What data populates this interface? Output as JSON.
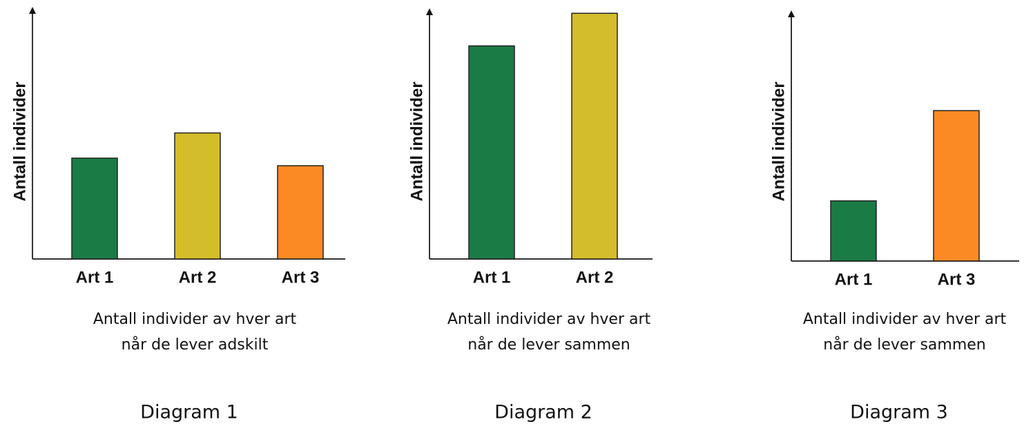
{
  "chart_data": [
    {
      "type": "bar",
      "title": "Diagram 1",
      "y_label": "Antall individer",
      "categories": [
        "Art 1",
        "Art 2",
        "Art 3"
      ],
      "values": [
        40,
        50,
        37
      ],
      "colors": [
        "#1b7b45",
        "#d4bd2b",
        "#fb8a24"
      ],
      "ylim": [
        0,
        100
      ],
      "caption": [
        "Antall individer av hver art",
        "når de lever adskilt"
      ]
    },
    {
      "type": "bar",
      "title": "Diagram 2",
      "y_label": "Antall individer",
      "categories": [
        "Art 1",
        "Art 2"
      ],
      "values": [
        85,
        98
      ],
      "colors": [
        "#1b7b45",
        "#d4bd2b"
      ],
      "ylim": [
        0,
        100
      ],
      "caption": [
        "Antall individer av hver art",
        "når de lever sammen"
      ]
    },
    {
      "type": "bar",
      "title": "Diagram 3",
      "y_label": "Antall individer",
      "categories": [
        "Art 1",
        "Art 3"
      ],
      "values": [
        24,
        60
      ],
      "colors": [
        "#1b7b45",
        "#fb8a24"
      ],
      "ylim": [
        0,
        100
      ],
      "caption": [
        "Antall individer av hver art",
        "når de lever sammen"
      ]
    }
  ]
}
